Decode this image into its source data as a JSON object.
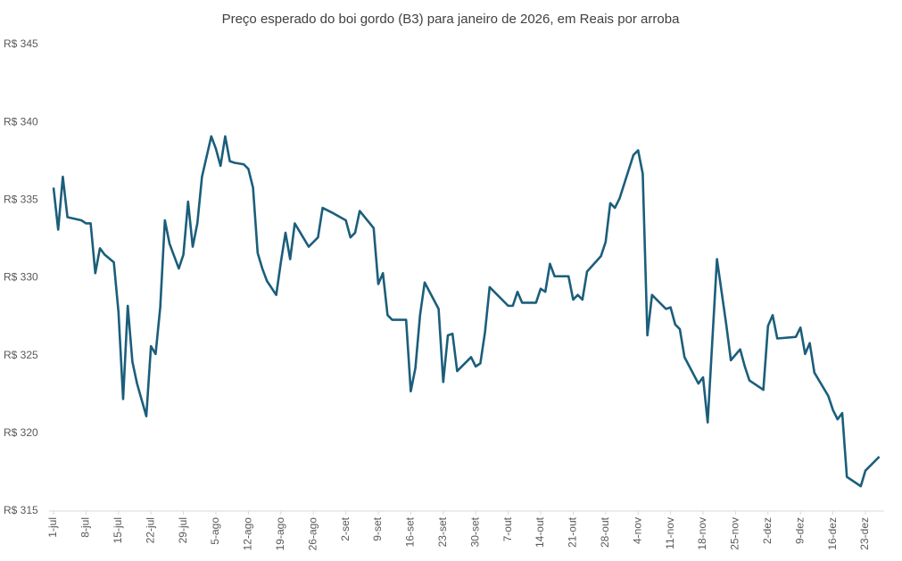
{
  "chart_data": {
    "type": "line",
    "title": "Preço esperado do boi gordo (B3) para janeiro de 2026, em Reais por arroba",
    "x": [
      0,
      1,
      2,
      3,
      6,
      7,
      8,
      9,
      10,
      11,
      13,
      14,
      15,
      16,
      17,
      18,
      20,
      21,
      22,
      23,
      24,
      25,
      27,
      28,
      29,
      30,
      31,
      32,
      34,
      35,
      36,
      37,
      38,
      39,
      41,
      42,
      43,
      44,
      45,
      46,
      48,
      49,
      50,
      51,
      52,
      53,
      55,
      57,
      58,
      60,
      63,
      64,
      65,
      66,
      69,
      70,
      71,
      72,
      73,
      76,
      77,
      78,
      79,
      80,
      83,
      84,
      85,
      86,
      87,
      90,
      91,
      92,
      93,
      94,
      98,
      99,
      100,
      101,
      104,
      105,
      106,
      107,
      108,
      111,
      112,
      113,
      114,
      115,
      118,
      119,
      120,
      121,
      122,
      125,
      126,
      127,
      128,
      129,
      132,
      133,
      134,
      135,
      136,
      139,
      140,
      141,
      143,
      145,
      146,
      148,
      149,
      150,
      153,
      154,
      155,
      156,
      160,
      161,
      162,
      163,
      164,
      167,
      168,
      169,
      170,
      171,
      174,
      175,
      178
    ],
    "series": [
      {
        "name": "Preço",
        "color": "#1b5e7b",
        "values": [
          335.8,
          333.1,
          336.5,
          333.9,
          333.7,
          333.5,
          333.5,
          330.3,
          331.9,
          331.5,
          331.0,
          327.8,
          322.2,
          328.2,
          324.6,
          323.2,
          321.1,
          325.6,
          325.1,
          328.1,
          333.7,
          332.2,
          330.6,
          331.5,
          334.9,
          332.0,
          333.5,
          336.5,
          339.1,
          338.3,
          337.2,
          339.1,
          337.5,
          337.4,
          337.3,
          337.0,
          335.8,
          331.6,
          330.6,
          329.8,
          328.9,
          331.0,
          332.9,
          331.2,
          333.5,
          333.0,
          332.0,
          332.6,
          334.5,
          334.2,
          333.7,
          332.6,
          332.9,
          334.3,
          333.2,
          329.6,
          330.3,
          327.6,
          327.3,
          327.3,
          322.7,
          324.2,
          327.6,
          329.7,
          328.0,
          323.3,
          326.3,
          326.4,
          324.0,
          324.9,
          324.3,
          324.5,
          326.5,
          329.4,
          328.2,
          328.2,
          329.1,
          328.4,
          328.4,
          329.3,
          329.1,
          330.9,
          330.1,
          330.1,
          328.6,
          328.9,
          328.6,
          330.4,
          331.4,
          332.3,
          334.8,
          334.5,
          335.1,
          337.9,
          338.2,
          336.7,
          326.3,
          328.9,
          328.0,
          328.1,
          327.0,
          326.7,
          324.9,
          323.2,
          323.6,
          320.7,
          331.2,
          327.0,
          324.7,
          325.4,
          324.3,
          323.4,
          322.8,
          326.9,
          327.6,
          326.1,
          326.2,
          326.8,
          325.1,
          325.8,
          323.9,
          322.4,
          321.5,
          320.9,
          321.3,
          317.2,
          316.6,
          317.6,
          318.5
        ]
      }
    ],
    "xlim": [
      -1,
      179
    ],
    "xticks": [
      {
        "value": 0,
        "label": "1-jul"
      },
      {
        "value": 7,
        "label": "8-jul"
      },
      {
        "value": 14,
        "label": "15-jul"
      },
      {
        "value": 21,
        "label": "22-jul"
      },
      {
        "value": 28,
        "label": "29-jul"
      },
      {
        "value": 35,
        "label": "5-ago"
      },
      {
        "value": 42,
        "label": "12-ago"
      },
      {
        "value": 49,
        "label": "19-ago"
      },
      {
        "value": 56,
        "label": "26-ago"
      },
      {
        "value": 63,
        "label": "2-set"
      },
      {
        "value": 70,
        "label": "9-set"
      },
      {
        "value": 77,
        "label": "16-set"
      },
      {
        "value": 84,
        "label": "23-set"
      },
      {
        "value": 91,
        "label": "30-set"
      },
      {
        "value": 98,
        "label": "7-out"
      },
      {
        "value": 105,
        "label": "14-out"
      },
      {
        "value": 112,
        "label": "21-out"
      },
      {
        "value": 119,
        "label": "28-out"
      },
      {
        "value": 126,
        "label": "4-nov"
      },
      {
        "value": 133,
        "label": "11-nov"
      },
      {
        "value": 140,
        "label": "18-nov"
      },
      {
        "value": 147,
        "label": "25-nov"
      },
      {
        "value": 154,
        "label": "2-dez"
      },
      {
        "value": 161,
        "label": "9-dez"
      },
      {
        "value": 168,
        "label": "16-dez"
      },
      {
        "value": 175,
        "label": "23-dez"
      }
    ],
    "ylim": [
      315,
      345
    ],
    "yticks": [
      {
        "value": 315,
        "label": "R$ 315"
      },
      {
        "value": 320,
        "label": "R$ 320"
      },
      {
        "value": 325,
        "label": "R$ 325"
      },
      {
        "value": 330,
        "label": "R$ 330"
      },
      {
        "value": 335,
        "label": "R$ 335"
      },
      {
        "value": 340,
        "label": "R$ 340"
      },
      {
        "value": 345,
        "label": "R$ 345"
      }
    ],
    "grid": false
  }
}
